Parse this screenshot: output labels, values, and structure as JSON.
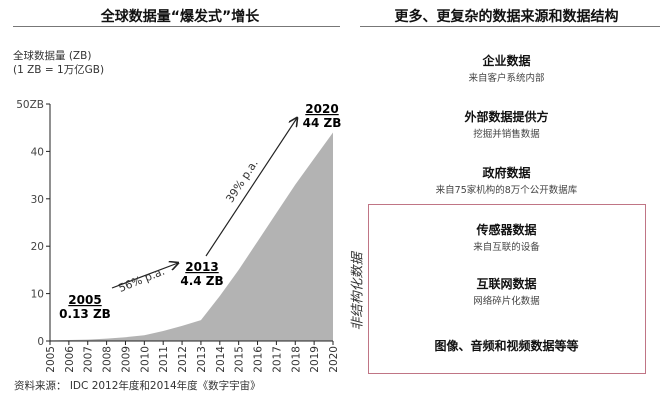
{
  "left_panel": {
    "title": "全球数据量“爆发式”增长",
    "unit_line1": "全球数据量 (ZB)",
    "unit_line2": "(1 ZB = 1万亿GB)",
    "source": "资料来源： IDC 2012年度和2014年度《数字宇宙》"
  },
  "chart_data": {
    "type": "area",
    "x": [
      "2005",
      "2006",
      "2007",
      "2008",
      "2009",
      "2010",
      "2011",
      "2012",
      "2013",
      "2014",
      "2015",
      "2016",
      "2017",
      "2018",
      "2019",
      "2020"
    ],
    "values": [
      0.13,
      0.2,
      0.3,
      0.5,
      0.8,
      1.2,
      2.1,
      3.2,
      4.4,
      9.5,
      15,
      21,
      27,
      33,
      38.5,
      44
    ],
    "ylim": [
      0,
      50
    ],
    "yticks": [
      "0",
      "10",
      "20",
      "30",
      "40",
      "50ZB"
    ],
    "ytick_values": [
      0,
      10,
      20,
      30,
      40,
      50
    ],
    "fill_color": "#b3b3b3",
    "grid": false,
    "annotations": [
      {
        "year": "2005",
        "value": "0.13 ZB"
      },
      {
        "year": "2013",
        "value": "4.4 ZB"
      },
      {
        "year": "2020",
        "value": "44 ZB"
      }
    ],
    "growth_labels": [
      "56% p.a.",
      "39% p.a."
    ]
  },
  "right_panel": {
    "title": "更多、更复杂的数据来源和数据结构",
    "items": [
      {
        "heading": "企业数据",
        "sub": "来自客户系统内部"
      },
      {
        "heading": "外部数据提供方",
        "sub": "挖掘并销售数据"
      },
      {
        "heading": "政府数据",
        "sub": "来自75家机构的8万个公开数据库"
      },
      {
        "heading": "传感器数据",
        "sub": "来自互联的设备"
      },
      {
        "heading": "互联网数据",
        "sub": "网络碎片化数据"
      },
      {
        "heading": "图像、音频和视频数据等等",
        "sub": ""
      }
    ],
    "unstructured_label": "非结构化数据",
    "box_color": "#c07585"
  }
}
